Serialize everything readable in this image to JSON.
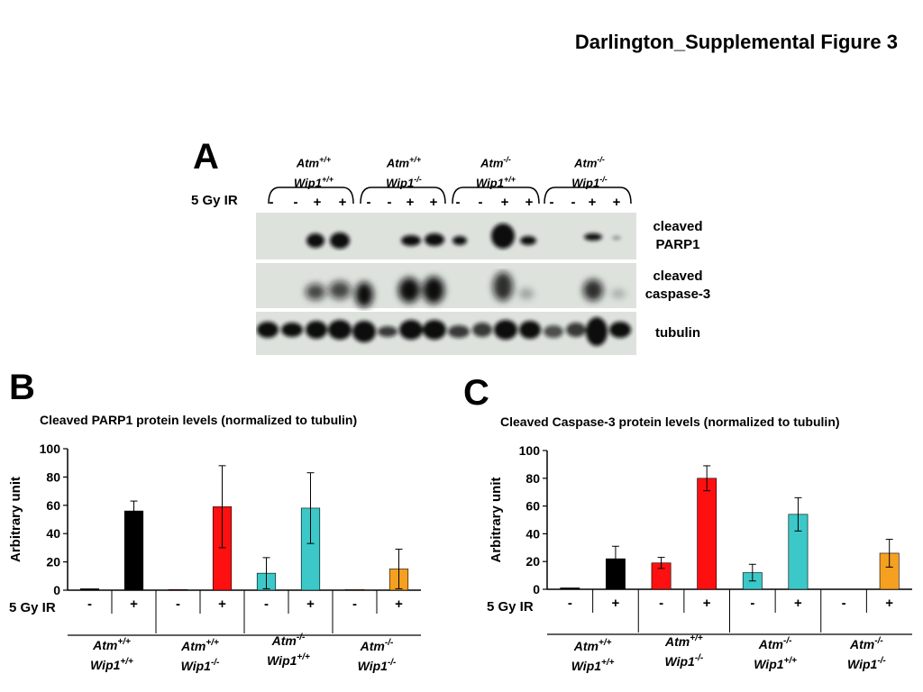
{
  "figure_title": "Darlington_Supplemental Figure 3",
  "panel_a": {
    "letter": "A",
    "ir_label": "5 Gy IR",
    "genotypes": [
      {
        "atm": "Atm",
        "atm_sup": "+/+",
        "wip": "Wip1",
        "wip_sup": "+/+"
      },
      {
        "atm": "Atm",
        "atm_sup": "+/+",
        "wip": "Wip1",
        "wip_sup": "-/-"
      },
      {
        "atm": "Atm",
        "atm_sup": "-/-",
        "wip": "Wip1",
        "wip_sup": "+/+"
      },
      {
        "atm": "Atm",
        "atm_sup": "-/-",
        "wip": "Wip1",
        "wip_sup": "-/-"
      }
    ],
    "lane_signs": [
      "-",
      "-",
      "+",
      "+",
      "-",
      "-",
      "+",
      "+",
      "-",
      "-",
      "+",
      "+",
      "-",
      "-",
      "+",
      "+"
    ],
    "blots": [
      {
        "line1": "cleaved",
        "line2": "PARP1"
      },
      {
        "line1": "cleaved",
        "line2": "caspase-3"
      },
      {
        "line1": "tubulin",
        "line2": ""
      }
    ]
  },
  "panel_b": {
    "letter": "B"
  },
  "panel_c": {
    "letter": "C"
  },
  "chart_data": [
    {
      "type": "bar",
      "title": "Cleaved PARP1 protein levels (normalized to tubulin)",
      "ylabel": "Arbitrary unit",
      "xlabel": "5 Gy IR",
      "ylim": [
        0,
        100
      ],
      "yticks": [
        "0",
        "20",
        "40",
        "60",
        "80",
        "100"
      ],
      "categories": [
        "-",
        "+",
        "-",
        "+",
        "-",
        "+",
        "-",
        "+"
      ],
      "values": [
        1,
        56,
        0.5,
        59,
        12,
        58,
        0.5,
        15
      ],
      "errors": [
        0,
        7,
        0,
        29,
        11,
        25,
        0,
        14
      ],
      "colors": [
        "#000000",
        "#000000",
        "#ff1010",
        "#ff1010",
        "#3cc8c8",
        "#3cc8c8",
        "#f5a020",
        "#f5a020"
      ],
      "groups": [
        {
          "atm": "Atm",
          "atm_sup": "+/+",
          "wip": "Wip1",
          "wip_sup": "+/+"
        },
        {
          "atm": "Atm",
          "atm_sup": "+/+",
          "wip": "Wip1",
          "wip_sup": "-/-"
        },
        {
          "atm": "Atm",
          "atm_sup": "-/-",
          "wip": "Wip1",
          "wip_sup": "+/+"
        },
        {
          "atm": "Atm",
          "atm_sup": "-/-",
          "wip": "Wip1",
          "wip_sup": "-/-"
        }
      ]
    },
    {
      "type": "bar",
      "title": "Cleaved Caspase-3 protein levels (normalized to tubulin)",
      "ylabel": "Arbitrary unit",
      "xlabel": "5 Gy IR",
      "ylim": [
        0,
        100
      ],
      "yticks": [
        "0",
        "20",
        "40",
        "60",
        "80",
        "100"
      ],
      "categories": [
        "-",
        "+",
        "-",
        "+",
        "-",
        "+",
        "-",
        "+"
      ],
      "values": [
        1,
        22,
        19,
        80,
        12,
        54,
        0,
        26
      ],
      "errors": [
        0,
        9,
        4,
        9,
        6,
        12,
        0,
        10
      ],
      "colors": [
        "#000000",
        "#000000",
        "#ff1010",
        "#ff1010",
        "#3cc8c8",
        "#3cc8c8",
        "#f5a020",
        "#f5a020"
      ],
      "groups": [
        {
          "atm": "Atm",
          "atm_sup": "+/+",
          "wip": "Wip1",
          "wip_sup": "+/+"
        },
        {
          "atm": "Atm",
          "atm_sup": "+/+",
          "wip": "Wip1",
          "wip_sup": "-/-"
        },
        {
          "atm": "Atm",
          "atm_sup": "-/-",
          "wip": "Wip1",
          "wip_sup": "+/+"
        },
        {
          "atm": "Atm",
          "atm_sup": "-/-",
          "wip": "Wip1",
          "wip_sup": "-/-"
        }
      ]
    }
  ]
}
